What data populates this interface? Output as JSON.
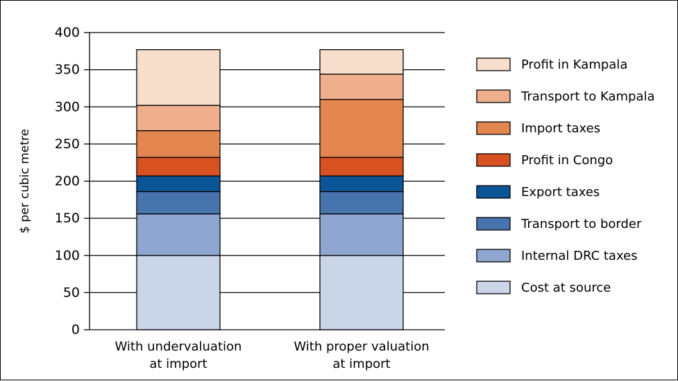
{
  "chart_data": {
    "type": "bar",
    "stacked": true,
    "title": "",
    "xlabel": "",
    "ylabel": "$ per cubic metre",
    "ylim": [
      0,
      400
    ],
    "yticks": [
      0,
      50,
      100,
      150,
      200,
      250,
      300,
      350,
      400
    ],
    "grid": true,
    "legend_position": "right",
    "categories": [
      [
        "With undervaluation",
        "at import"
      ],
      [
        "With proper valuation",
        "at import"
      ]
    ],
    "series": [
      {
        "name": "Cost at source",
        "color": "#cbd5e8",
        "values": [
          100,
          100
        ]
      },
      {
        "name": "Internal DRC taxes",
        "color": "#8ea6d0",
        "values": [
          56,
          56
        ]
      },
      {
        "name": "Transport to border",
        "color": "#4774ad",
        "values": [
          30,
          30
        ]
      },
      {
        "name": "Export taxes",
        "color": "#0b5496",
        "values": [
          21,
          21
        ]
      },
      {
        "name": "Profit in Congo",
        "color": "#d85121",
        "values": [
          25,
          25
        ]
      },
      {
        "name": "Import taxes",
        "color": "#e4864f",
        "values": [
          36,
          78
        ]
      },
      {
        "name": "Transport to Kampala",
        "color": "#f0af8c",
        "values": [
          34,
          34
        ]
      },
      {
        "name": "Profit in Kampala",
        "color": "#f8dfcd",
        "values": [
          75,
          33
        ]
      }
    ]
  }
}
